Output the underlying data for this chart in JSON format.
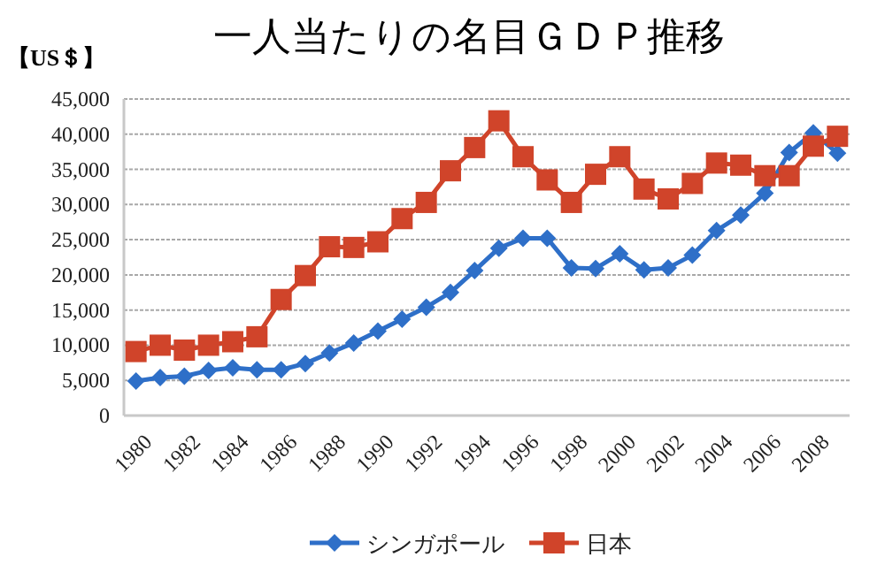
{
  "chart_data": {
    "type": "line",
    "title": "一人当たりの名目ＧＤＰ推移",
    "ylabel": "【US＄】",
    "categories": [
      "1980",
      null,
      "1982",
      null,
      "1984",
      null,
      "1986",
      null,
      "1988",
      null,
      "1990",
      null,
      "1992",
      null,
      "1994",
      null,
      "1996",
      null,
      "1998",
      null,
      "2000",
      null,
      "2002",
      null,
      "2004",
      null,
      "2006",
      null,
      "2008",
      null
    ],
    "series": [
      {
        "name": "シンガポール",
        "color": "#2e6fc8",
        "marker": "diamond",
        "values": [
          4900,
          5400,
          5600,
          6400,
          6800,
          6500,
          6500,
          7400,
          8900,
          10300,
          12000,
          13700,
          15400,
          17500,
          20600,
          23800,
          25200,
          25200,
          21000,
          20900,
          23000,
          20700,
          21000,
          22800,
          26300,
          28500,
          31600,
          37400,
          40200,
          37300
        ]
      },
      {
        "name": "日本",
        "color": "#d0442a",
        "marker": "square",
        "values": [
          9100,
          10000,
          9300,
          10000,
          10500,
          11200,
          16500,
          19900,
          24000,
          23900,
          24700,
          28000,
          30300,
          34800,
          38100,
          41900,
          36800,
          33500,
          30300,
          34300,
          36800,
          32200,
          30800,
          33000,
          35900,
          35600,
          34100,
          34100,
          38300,
          39700
        ]
      }
    ],
    "ylim": [
      0,
      45000
    ],
    "yticks": [
      {
        "value": 0,
        "label": "0"
      },
      {
        "value": 5000,
        "label": "5,000"
      },
      {
        "value": 10000,
        "label": "10,000"
      },
      {
        "value": 15000,
        "label": "15,000"
      },
      {
        "value": 20000,
        "label": "20,000"
      },
      {
        "value": 25000,
        "label": "25,000"
      },
      {
        "value": 30000,
        "label": "30,000"
      },
      {
        "value": 35000,
        "label": "35,000"
      },
      {
        "value": 40000,
        "label": "40,000"
      },
      {
        "value": 45000,
        "label": "45,000"
      }
    ],
    "grid": "y",
    "legend": "bottom"
  }
}
